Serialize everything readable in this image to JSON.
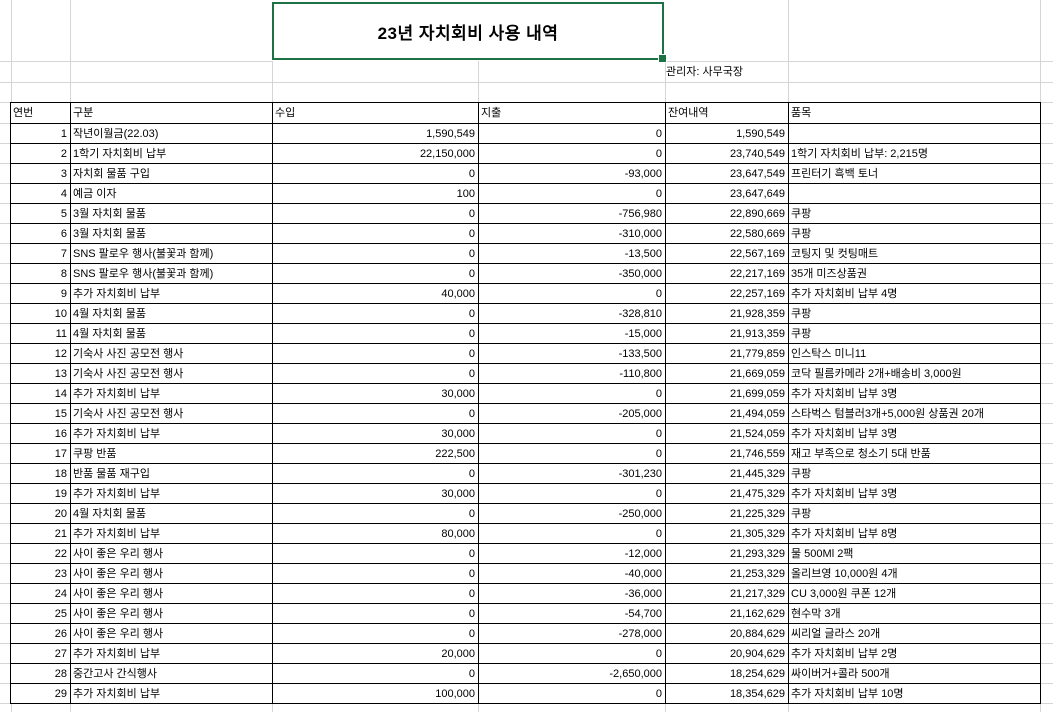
{
  "sheet": {
    "title": "23년 자치회비 사용 내역",
    "admin_label": "관리자: 사무국장",
    "selection_color": "#1e7145",
    "gridline_color": "#d5d5d5"
  },
  "table": {
    "headers": [
      "연번",
      "구분",
      "수입",
      "지출",
      "잔여내역",
      "품목"
    ],
    "rows": [
      {
        "no": "1",
        "category": "작년이월금(22.03)",
        "income": "1,590,549",
        "expense": "0",
        "balance": "1,590,549",
        "item": ""
      },
      {
        "no": "2",
        "category": "1학기 자치회비 납부",
        "income": "22,150,000",
        "expense": "0",
        "balance": "23,740,549",
        "item": "1학기 자치회비 납부: 2,215명"
      },
      {
        "no": "3",
        "category": "자치회 물품 구입",
        "income": "0",
        "expense": "-93,000",
        "balance": "23,647,549",
        "item": "프린터기 흑백 토너"
      },
      {
        "no": "4",
        "category": "예금 이자",
        "income": "100",
        "expense": "0",
        "balance": "23,647,649",
        "item": ""
      },
      {
        "no": "5",
        "category": "3월 자치회 물품",
        "income": "0",
        "expense": "-756,980",
        "balance": "22,890,669",
        "item": "쿠팡"
      },
      {
        "no": "6",
        "category": "3월 자치회 물품",
        "income": "0",
        "expense": "-310,000",
        "balance": "22,580,669",
        "item": "쿠팡"
      },
      {
        "no": "7",
        "category": "SNS 팔로우 행사(불꽃과 함께)",
        "income": "0",
        "expense": "-13,500",
        "balance": "22,567,169",
        "item": "코팅지 및 컷팅매트"
      },
      {
        "no": "8",
        "category": "SNS 팔로우 행사(불꽃과 함께)",
        "income": "0",
        "expense": "-350,000",
        "balance": "22,217,169",
        "item": "35개 미즈상품권"
      },
      {
        "no": "9",
        "category": "추가 자치회비 납부",
        "income": "40,000",
        "expense": "0",
        "balance": "22,257,169",
        "item": "추가 자치회비 납부 4명"
      },
      {
        "no": "10",
        "category": "4월 자치회 물품",
        "income": "0",
        "expense": "-328,810",
        "balance": "21,928,359",
        "item": "쿠팡"
      },
      {
        "no": "11",
        "category": "4월 자치회 물품",
        "income": "0",
        "expense": "-15,000",
        "balance": "21,913,359",
        "item": "쿠팡"
      },
      {
        "no": "12",
        "category": "기숙사 사진 공모전 행사",
        "income": "0",
        "expense": "-133,500",
        "balance": "21,779,859",
        "item": "인스탁스 미니11"
      },
      {
        "no": "13",
        "category": "기숙사 사진 공모전 행사",
        "income": "0",
        "expense": "-110,800",
        "balance": "21,669,059",
        "item": "코닥 필름카메라 2개+배송비 3,000원"
      },
      {
        "no": "14",
        "category": "추가 자치회비 납부",
        "income": "30,000",
        "expense": "0",
        "balance": "21,699,059",
        "item": "추가 자치회비 납부 3명"
      },
      {
        "no": "15",
        "category": "기숙사 사진 공모전 행사",
        "income": "0",
        "expense": "-205,000",
        "balance": "21,494,059",
        "item": "스타벅스 텀블러3개+5,000원 상품권 20개"
      },
      {
        "no": "16",
        "category": "추가 자치회비 납부",
        "income": "30,000",
        "expense": "0",
        "balance": "21,524,059",
        "item": "추가 자치회비 납부 3명"
      },
      {
        "no": "17",
        "category": "쿠팡 반품",
        "income": "222,500",
        "expense": "0",
        "balance": "21,746,559",
        "item": "재고 부족으로 청소기 5대 반품"
      },
      {
        "no": "18",
        "category": "반품 물품 재구입",
        "income": "0",
        "expense": "-301,230",
        "balance": "21,445,329",
        "item": "쿠팡"
      },
      {
        "no": "19",
        "category": "추가 자치회비 납부",
        "income": "30,000",
        "expense": "0",
        "balance": "21,475,329",
        "item": "추가 자치회비 납부 3명"
      },
      {
        "no": "20",
        "category": "4월 자치회 물품",
        "income": "0",
        "expense": "-250,000",
        "balance": "21,225,329",
        "item": "쿠팡"
      },
      {
        "no": "21",
        "category": "추가 자치회비 납부",
        "income": "80,000",
        "expense": "0",
        "balance": "21,305,329",
        "item": "추가 자치회비 납부 8명"
      },
      {
        "no": "22",
        "category": "사이 좋은 우리 행사",
        "income": "0",
        "expense": "-12,000",
        "balance": "21,293,329",
        "item": "물 500Ml 2팩"
      },
      {
        "no": "23",
        "category": "사이 좋은 우리 행사",
        "income": "0",
        "expense": "-40,000",
        "balance": "21,253,329",
        "item": "올리브영 10,000원 4개"
      },
      {
        "no": "24",
        "category": "사이 좋은 우리 행사",
        "income": "0",
        "expense": "-36,000",
        "balance": "21,217,329",
        "item": "CU 3,000원 쿠폰 12개"
      },
      {
        "no": "25",
        "category": "사이 좋은 우리 행사",
        "income": "0",
        "expense": "-54,700",
        "balance": "21,162,629",
        "item": "현수막 3개"
      },
      {
        "no": "26",
        "category": "사이 좋은 우리 행사",
        "income": "0",
        "expense": "-278,000",
        "balance": "20,884,629",
        "item": "씨리얼 글라스 20개"
      },
      {
        "no": "27",
        "category": "추가 자치회비 납부",
        "income": "20,000",
        "expense": "0",
        "balance": "20,904,629",
        "item": "추가 자치회비 납부 2명"
      },
      {
        "no": "28",
        "category": "중간고사 간식행사",
        "income": "0",
        "expense": "-2,650,000",
        "balance": "18,254,629",
        "item": "싸이버거+콜라 500개"
      },
      {
        "no": "29",
        "category": "추가 자치회비 납부",
        "income": "100,000",
        "expense": "0",
        "balance": "18,354,629",
        "item": "추가 자치회비 납부 10명"
      }
    ]
  }
}
